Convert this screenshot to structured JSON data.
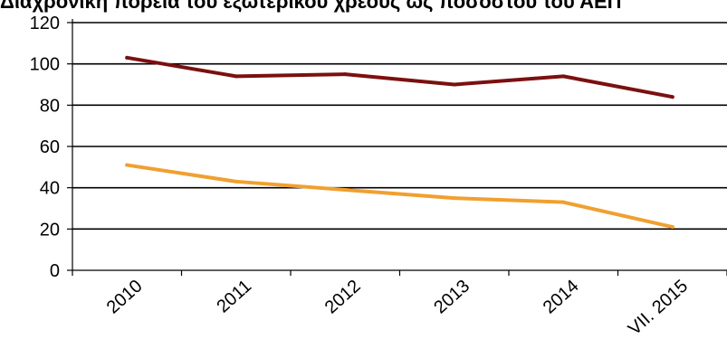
{
  "chart_data": {
    "type": "line",
    "title": "Διαχρονική πορεία του εξωτερικού χρέους ως ποσοστού του ΑΕΠ",
    "categories": [
      "2010",
      "2011",
      "2012",
      "2013",
      "2014",
      "VII. 2015"
    ],
    "series": [
      {
        "values": [
          103,
          94,
          95,
          90,
          94,
          84
        ],
        "color": "#7b1010"
      },
      {
        "values": [
          51,
          43,
          39,
          35,
          33,
          21
        ],
        "color": "#f0a030"
      }
    ],
    "ylim": [
      0,
      120
    ],
    "yticks": [
      0,
      20,
      40,
      60,
      80,
      100,
      120
    ],
    "grid": true
  }
}
